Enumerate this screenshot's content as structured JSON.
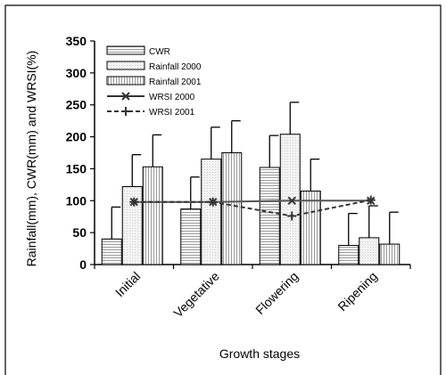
{
  "chart_data": {
    "type": "bar",
    "ylabel": "Rainfall(mm), CWR(mm) and WRSI(%)",
    "xlabel": "Growth stages",
    "categories": [
      "Initial",
      "Vegetative",
      "Flowering",
      "Ripening"
    ],
    "ylim": [
      0,
      350
    ],
    "yticks": [
      0,
      50,
      100,
      150,
      200,
      250,
      300,
      350
    ],
    "grid": false,
    "legend_position": "top-left",
    "bar_series": [
      {
        "name": "CWR",
        "values": [
          40,
          87,
          152,
          30
        ],
        "error": [
          50,
          50,
          50,
          50
        ],
        "pattern": "horizontal-lines"
      },
      {
        "name": "Rainfall 2000",
        "values": [
          122,
          165,
          204,
          42
        ],
        "error": [
          50,
          50,
          50,
          50
        ],
        "pattern": "light"
      },
      {
        "name": "Rainfall 2001",
        "values": [
          153,
          175,
          115,
          32
        ],
        "error": [
          50,
          50,
          50,
          50
        ],
        "pattern": "vertical-lines"
      }
    ],
    "line_series": [
      {
        "name": "WRSI 2000",
        "values": [
          98,
          98,
          100,
          100
        ],
        "style": "solid",
        "marker": "x"
      },
      {
        "name": "WRSI 2001",
        "values": [
          98,
          98,
          76,
          101
        ],
        "style": "dashed",
        "marker": "plus"
      }
    ]
  }
}
